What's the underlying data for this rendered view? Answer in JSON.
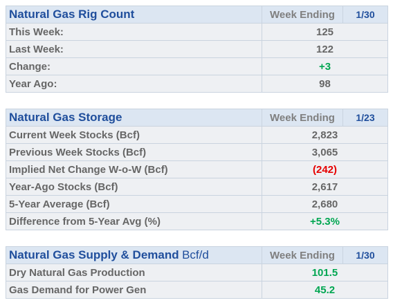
{
  "tables": [
    {
      "title": "Natural Gas Rig Count",
      "header_label": "Week Ending",
      "header_date": "1/30",
      "rows": [
        {
          "label": "This Week:",
          "value": "125"
        },
        {
          "label": "Last Week:",
          "value": "122"
        },
        {
          "label": "Change:",
          "value": "+3",
          "color": "#00a651"
        },
        {
          "label": "Year Ago:",
          "value": "98"
        }
      ]
    },
    {
      "title": "Natural Gas Storage",
      "header_label": "Week Ending",
      "header_date": "1/23",
      "rows": [
        {
          "label": "Current Week Stocks (Bcf)",
          "value": "2,823"
        },
        {
          "label": "Previous Week Stocks (Bcf)",
          "value": "3,065"
        },
        {
          "label": "Implied Net Change W-o-W (Bcf)",
          "value": "(242)",
          "color": "#e60000"
        },
        {
          "label": "Year-Ago Stocks (Bcf)",
          "value": "2,617"
        },
        {
          "label": "5-Year Average (Bcf)",
          "value": "2,680"
        },
        {
          "label": "Difference from 5-Year Avg (%)",
          "value": "+5.3%",
          "color": "#00a651"
        }
      ]
    },
    {
      "title": "Natural Gas Supply & Demand",
      "title_unit": "Bcf/d",
      "header_label": "Week Ending",
      "header_date": "1/30",
      "rows": [
        {
          "label": "Dry Natural Gas Production",
          "value": "101.5",
          "color": "#00a651"
        },
        {
          "label": "Gas Demand for Power Gen",
          "value": "45.2",
          "color": "#00a651"
        }
      ]
    }
  ]
}
